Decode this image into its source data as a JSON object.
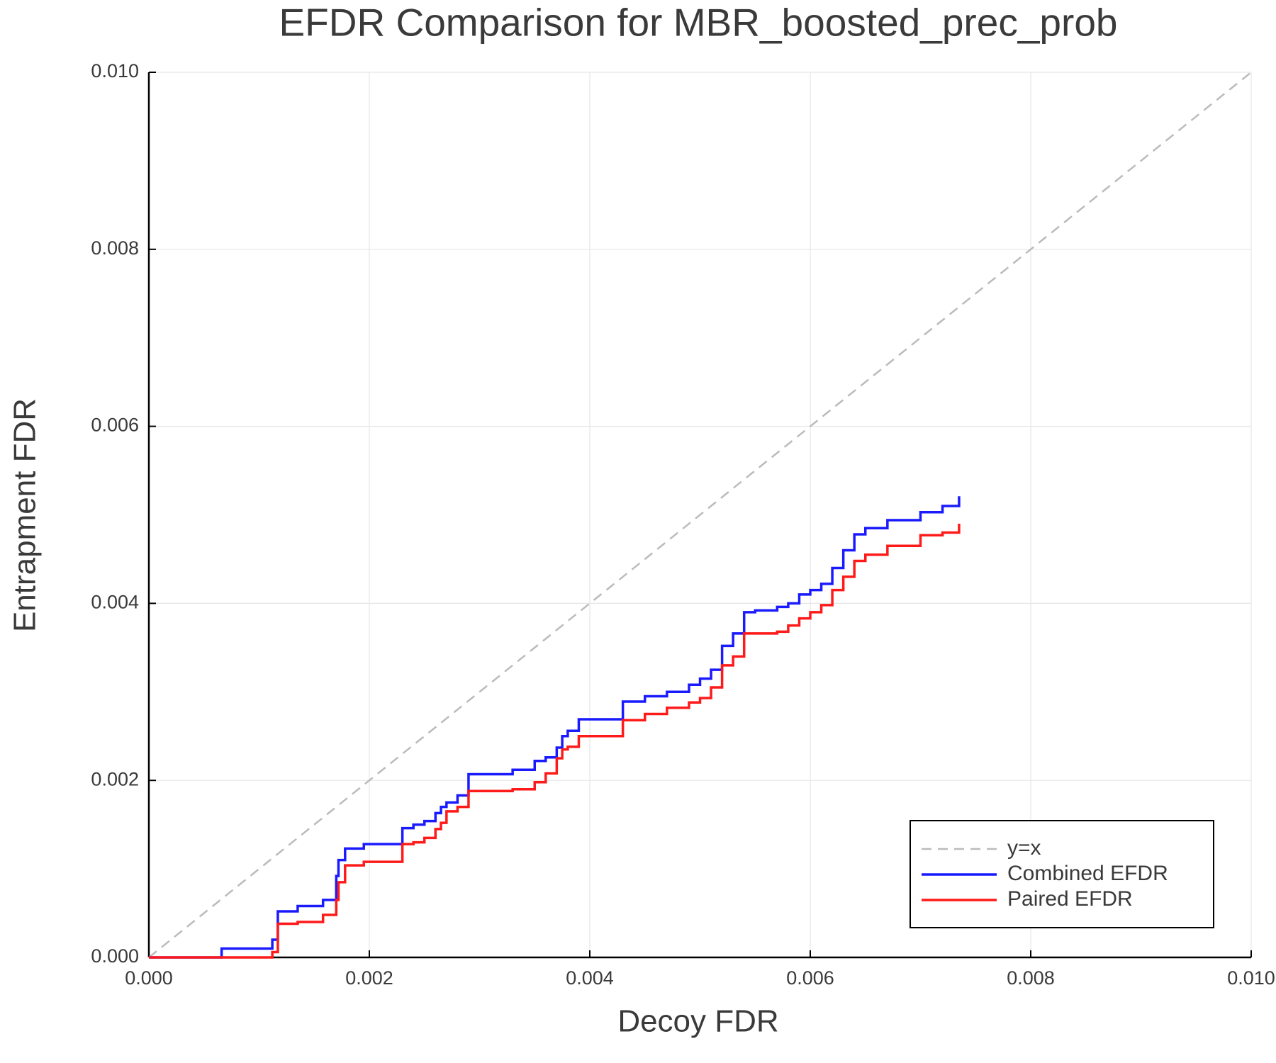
{
  "chart_data": {
    "type": "line",
    "step": "post",
    "title": "EFDR Comparison for MBR_boosted_prec_prob",
    "x_label": "Decoy FDR",
    "y_label": "Entrapment FDR",
    "xlim": [
      0,
      0.01
    ],
    "ylim": [
      0,
      0.01
    ],
    "xticks": [
      {
        "value": 0,
        "label": "0.000"
      },
      {
        "value": 0.002,
        "label": "0.002"
      },
      {
        "value": 0.004,
        "label": "0.004"
      },
      {
        "value": 0.006,
        "label": "0.006"
      },
      {
        "value": 0.008,
        "label": "0.008"
      },
      {
        "value": 0.01,
        "label": "0.010"
      }
    ],
    "yticks": [
      {
        "value": 0,
        "label": "0.000"
      },
      {
        "value": 0.002,
        "label": "0.002"
      },
      {
        "value": 0.004,
        "label": "0.004"
      },
      {
        "value": 0.006,
        "label": "0.006"
      },
      {
        "value": 0.008,
        "label": "0.008"
      },
      {
        "value": 0.01,
        "label": "0.010"
      }
    ],
    "grid": true,
    "legend": "lower right",
    "series": [
      {
        "name": "y=x",
        "color": "#bbbbbb",
        "dash": true,
        "x": [
          0,
          0.01
        ],
        "values": [
          0,
          0.01
        ]
      },
      {
        "name": "Combined EFDR",
        "color": "#1a1aff",
        "x": [
          0,
          0.00066,
          0.00112,
          0.00117,
          0.00135,
          0.00158,
          0.0017,
          0.00172,
          0.00178,
          0.00195,
          0.0023,
          0.0024,
          0.0025,
          0.0026,
          0.00265,
          0.0027,
          0.0028,
          0.0029,
          0.0033,
          0.0035,
          0.0036,
          0.0037,
          0.00375,
          0.0038,
          0.0039,
          0.0043,
          0.0045,
          0.0047,
          0.0049,
          0.005,
          0.0051,
          0.0052,
          0.0053,
          0.0054,
          0.0055,
          0.0057,
          0.0058,
          0.0059,
          0.006,
          0.0061,
          0.0062,
          0.0063,
          0.0064,
          0.0065,
          0.0067,
          0.007,
          0.0072,
          0.00735
        ],
        "values": [
          0,
          0.0001,
          0.0002,
          0.00052,
          0.00058,
          0.00065,
          0.00092,
          0.0011,
          0.00123,
          0.00128,
          0.00146,
          0.0015,
          0.00154,
          0.00163,
          0.0017,
          0.00175,
          0.00183,
          0.00207,
          0.00212,
          0.00222,
          0.00226,
          0.00237,
          0.0025,
          0.00256,
          0.00269,
          0.00289,
          0.00295,
          0.003,
          0.00308,
          0.00315,
          0.00325,
          0.00352,
          0.00366,
          0.0039,
          0.00392,
          0.00396,
          0.004,
          0.0041,
          0.00415,
          0.00422,
          0.0044,
          0.0046,
          0.00478,
          0.00485,
          0.00494,
          0.00503,
          0.0051,
          0.00521
        ]
      },
      {
        "name": "Paired EFDR",
        "color": "#ff1a1a",
        "x": [
          0,
          0.00066,
          0.00112,
          0.00117,
          0.00135,
          0.00158,
          0.0017,
          0.00172,
          0.00178,
          0.00195,
          0.0023,
          0.0024,
          0.0025,
          0.0026,
          0.00265,
          0.0027,
          0.0028,
          0.0029,
          0.0033,
          0.0035,
          0.0036,
          0.0037,
          0.00375,
          0.0038,
          0.0039,
          0.0043,
          0.0045,
          0.0047,
          0.0049,
          0.005,
          0.0051,
          0.0052,
          0.0053,
          0.0054,
          0.0055,
          0.0057,
          0.0058,
          0.0059,
          0.006,
          0.0061,
          0.0062,
          0.0063,
          0.0064,
          0.0065,
          0.0067,
          0.007,
          0.0072,
          0.00735
        ],
        "values": [
          0,
          0,
          6e-05,
          0.00038,
          0.0004,
          0.00048,
          0.00065,
          0.00085,
          0.00104,
          0.00108,
          0.00128,
          0.0013,
          0.00135,
          0.00145,
          0.00152,
          0.00165,
          0.0017,
          0.00188,
          0.0019,
          0.00198,
          0.00208,
          0.00225,
          0.00235,
          0.00238,
          0.0025,
          0.00268,
          0.00275,
          0.00282,
          0.00288,
          0.00293,
          0.00305,
          0.0033,
          0.0034,
          0.00366,
          0.00366,
          0.00368,
          0.00375,
          0.00383,
          0.0039,
          0.00398,
          0.00415,
          0.0043,
          0.00448,
          0.00455,
          0.00465,
          0.00477,
          0.0048,
          0.0049
        ]
      }
    ]
  }
}
